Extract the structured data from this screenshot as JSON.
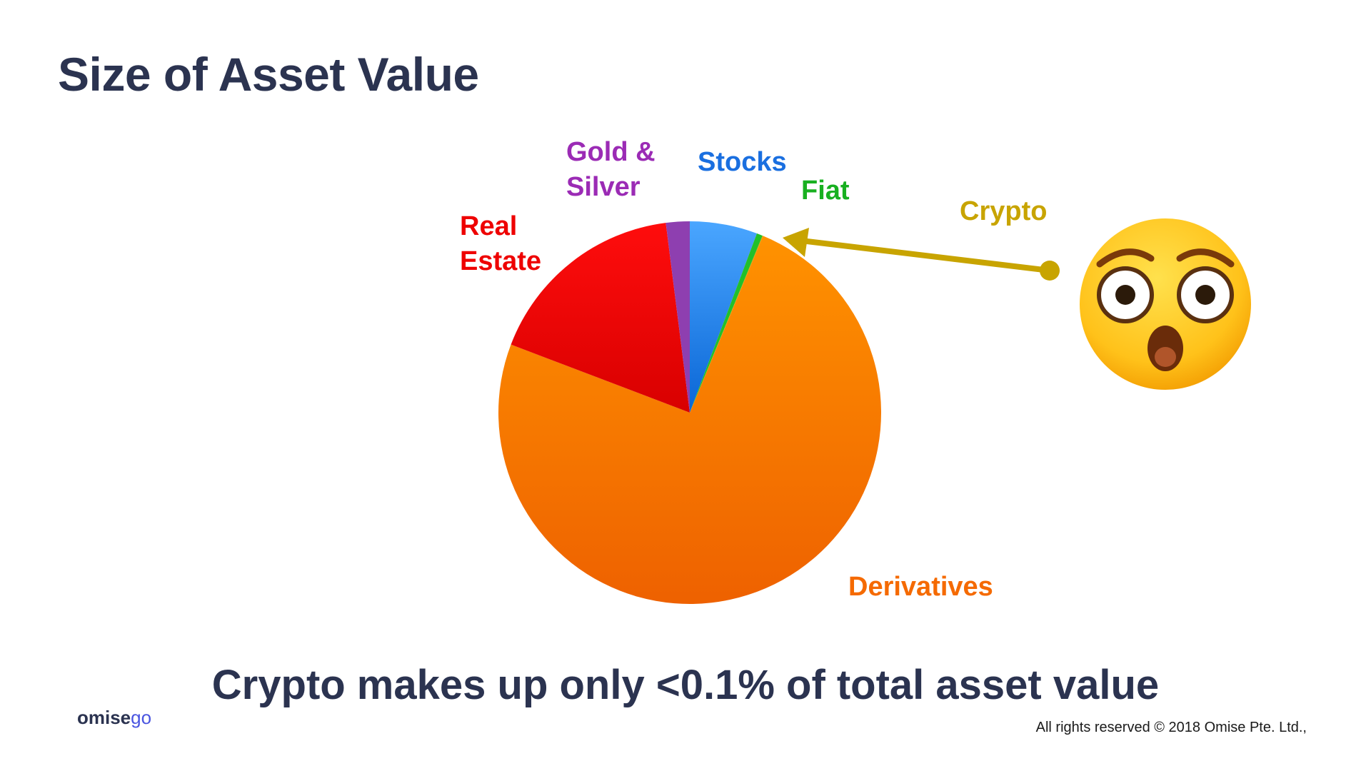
{
  "slide": {
    "title": "Size of Asset Value",
    "subtitle": "Crypto makes up only <0.1% of total asset value",
    "footer": "All rights reserved © 2018 Omise Pte. Ltd.,",
    "logo_text": "omise",
    "logo_accent": "go",
    "emoji_icon": "astonished-face-emoji-icon"
  },
  "chart_data": {
    "type": "pie",
    "title": "",
    "start_angle_deg": 0,
    "slices": [
      {
        "label": "Stocks",
        "value": 5.7,
        "color": "#2f8ff0",
        "label_color": "#1a6fe0"
      },
      {
        "label": "Fiat",
        "value": 0.5,
        "color": "#22c02a",
        "label_color": "#18b020"
      },
      {
        "label": "Crypto",
        "value": 0.05,
        "color": "#c8a400",
        "label_color": "#c8a400"
      },
      {
        "label": "Derivatives",
        "value": 74.5,
        "color": "#f57c00",
        "label_color": "#f56a00"
      },
      {
        "label": "Real Estate",
        "value": 17.2,
        "color": "#ee0000",
        "label_color": "#ee0000"
      },
      {
        "label": "Gold & Silver",
        "value": 2.0,
        "color": "#8e3fb0",
        "label_color": "#9b2bb5"
      }
    ]
  }
}
